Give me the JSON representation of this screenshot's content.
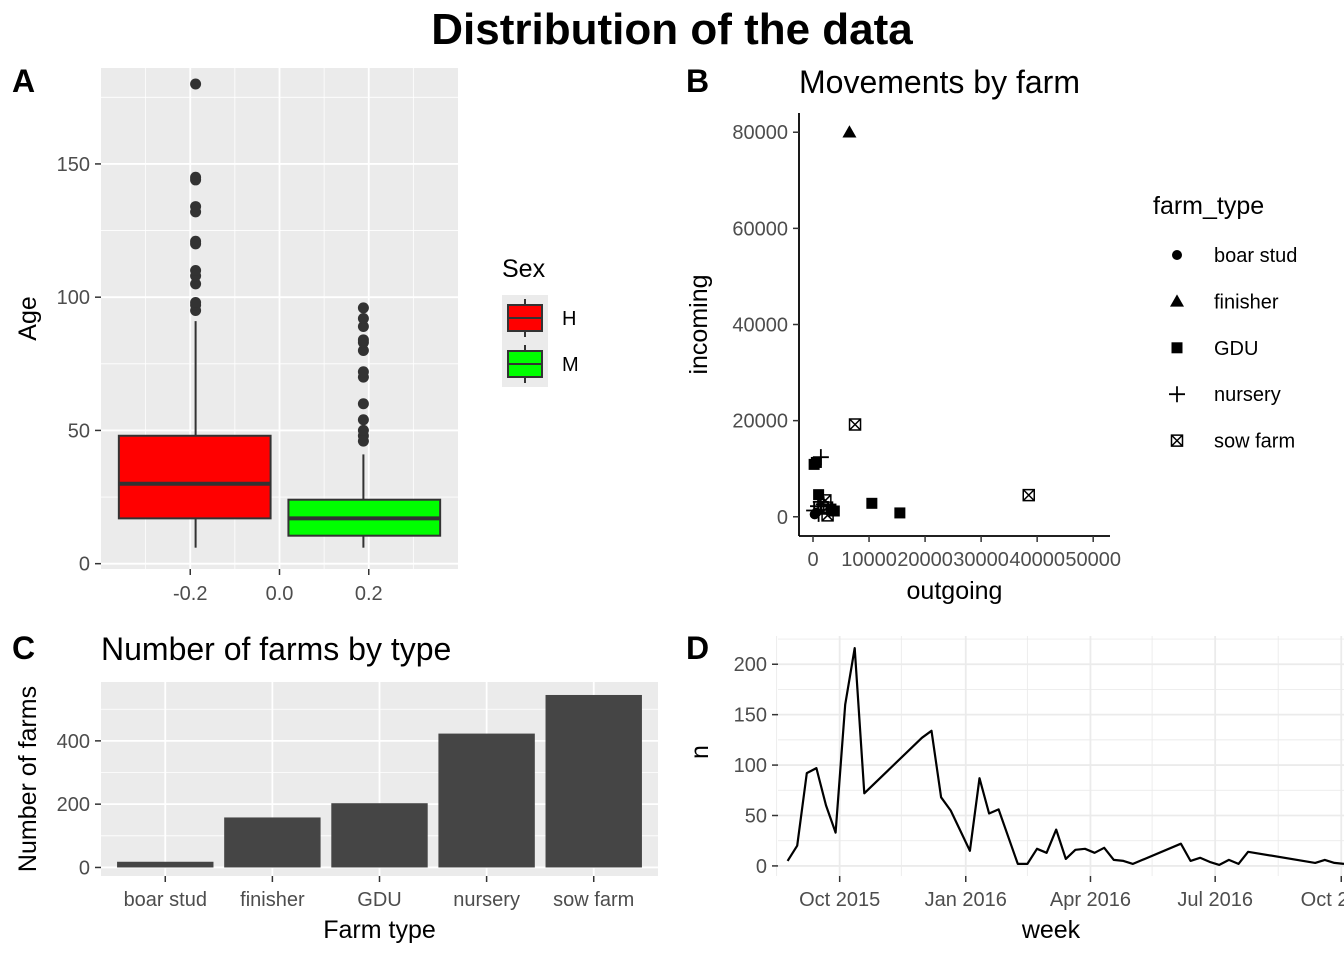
{
  "main_title": "Distribution of the data",
  "chart_data": [
    {
      "tag": "A",
      "type": "box",
      "title": "",
      "xlabel": "",
      "ylabel": "Age",
      "xlim": [
        -0.4,
        0.4
      ],
      "ylim": [
        -2,
        186
      ],
      "x_ticks": [
        -0.2,
        0.0,
        0.2
      ],
      "x_tick_labels": [
        "-0.2",
        "0.0",
        "0.2"
      ],
      "y_ticks": [
        0,
        50,
        100,
        150
      ],
      "y_tick_labels": [
        "0",
        "50",
        "100",
        "150"
      ],
      "grid": true,
      "legend_title": "Sex",
      "legend_position": "right",
      "series": [
        {
          "name": "H",
          "color": "#ff0000",
          "x_center": -0.188,
          "x_range": [
            -0.36,
            -0.02
          ],
          "whisker_low": 6,
          "q1": 17,
          "median": 30,
          "q3": 48,
          "whisker_high": 91,
          "outliers": [
            95,
            97,
            98,
            105,
            108,
            110,
            120,
            121,
            132,
            134,
            144,
            145,
            180
          ]
        },
        {
          "name": "M",
          "color": "#00ff00",
          "x_center": 0.188,
          "x_range": [
            0.02,
            0.36
          ],
          "whisker_low": 6,
          "q1": 10.5,
          "median": 17,
          "q3": 24,
          "whisker_high": 41,
          "outliers": [
            46,
            48,
            50,
            54,
            60,
            70,
            72,
            80,
            83,
            84,
            89,
            92,
            96
          ]
        }
      ]
    },
    {
      "tag": "B",
      "type": "scatter",
      "title": "Movements by farm",
      "xlabel": "outgoing",
      "ylabel": "incoming",
      "xlim": [
        -2500,
        53000
      ],
      "ylim": [
        -4000,
        84000
      ],
      "x_ticks": [
        0,
        10000,
        20000,
        30000,
        40000,
        50000
      ],
      "x_tick_labels": [
        "0",
        "10000",
        "20000",
        "30000",
        "40000",
        "50000"
      ],
      "y_ticks": [
        0,
        20000,
        40000,
        60000,
        80000
      ],
      "y_tick_labels": [
        "0",
        "20000",
        "40000",
        "60000",
        "80000"
      ],
      "grid": false,
      "legend_title": "farm_type",
      "legend_position": "right",
      "shapes": {
        "boar stud": "circle",
        "finisher": "triangle",
        "GDU": "square",
        "nursery": "plus",
        "sow farm": "boxx"
      },
      "series": [
        {
          "name": "boar stud",
          "points": [
            [
              300,
              500
            ],
            [
              600,
              900
            ]
          ]
        },
        {
          "name": "finisher",
          "points": [
            [
              6500,
              80000
            ]
          ]
        },
        {
          "name": "GDU",
          "points": [
            [
              200,
              10900
            ],
            [
              600,
              11300
            ],
            [
              1000,
              4600
            ],
            [
              3200,
              1600
            ],
            [
              3800,
              1200
            ],
            [
              10500,
              2800
            ],
            [
              15500,
              800
            ]
          ]
        },
        {
          "name": "nursery",
          "points": [
            [
              1400,
              12400
            ],
            [
              200,
              1300
            ],
            [
              900,
              2200
            ],
            [
              1400,
              3100
            ],
            [
              1000,
              600
            ],
            [
              1900,
              2600
            ]
          ]
        },
        {
          "name": "sow farm",
          "points": [
            [
              7500,
              19200
            ],
            [
              38500,
              4500
            ],
            [
              2200,
              3400
            ],
            [
              2500,
              1900
            ],
            [
              2600,
              300
            ]
          ]
        }
      ]
    },
    {
      "tag": "C",
      "type": "bar",
      "title": "Number of farms by type",
      "xlabel": "Farm type",
      "ylabel": "Number of farms",
      "categories": [
        "boar stud",
        "finisher",
        "GDU",
        "nursery",
        "sow farm"
      ],
      "values": [
        18,
        158,
        203,
        423,
        545
      ],
      "ylim": [
        -27,
        586
      ],
      "y_ticks": [
        0,
        200,
        400
      ],
      "y_tick_labels": [
        "0",
        "200",
        "400"
      ],
      "grid": true,
      "bar_color": "#454545"
    },
    {
      "tag": "D",
      "type": "line",
      "title": "",
      "xlabel": "week",
      "ylabel": "n",
      "xlim": [
        "2015-08-17",
        "2016-10-03"
      ],
      "ylim": [
        -10,
        228
      ],
      "x_ticks": [
        "2015-10-01",
        "2016-01-01",
        "2016-04-01",
        "2016-07-01",
        "2016-10-01"
      ],
      "x_tick_labels": [
        "Oct 2015",
        "Jan 2016",
        "Apr 2016",
        "Jul 2016",
        "Oct 2016"
      ],
      "y_ticks": [
        0,
        50,
        100,
        150,
        200
      ],
      "y_tick_labels": [
        "0",
        "50",
        "100",
        "150",
        "200"
      ],
      "grid": true,
      "line_color": "#000000",
      "x": [
        "2015-08-24",
        "2015-08-31",
        "2015-09-07",
        "2015-09-14",
        "2015-09-21",
        "2015-09-28",
        "2015-10-05",
        "2015-10-12",
        "2015-10-19",
        "2015-11-30",
        "2015-12-07",
        "2015-12-14",
        "2015-12-21",
        "2015-12-28",
        "2016-01-04",
        "2016-01-11",
        "2016-01-18",
        "2016-01-25",
        "2016-02-08",
        "2016-02-15",
        "2016-02-22",
        "2016-02-29",
        "2016-03-07",
        "2016-03-14",
        "2016-03-21",
        "2016-03-28",
        "2016-04-04",
        "2016-04-11",
        "2016-04-18",
        "2016-04-25",
        "2016-05-02",
        "2016-06-06",
        "2016-06-13",
        "2016-06-20",
        "2016-06-27",
        "2016-07-04",
        "2016-07-11",
        "2016-07-18",
        "2016-07-25",
        "2016-09-12",
        "2016-09-19",
        "2016-09-26",
        "2016-10-03"
      ],
      "values": [
        5,
        20,
        92,
        97,
        60,
        33,
        160,
        216,
        72,
        127,
        134,
        68,
        55,
        35,
        15,
        87,
        52,
        56,
        2,
        2,
        17,
        13,
        36,
        7,
        16,
        17,
        13,
        18,
        6,
        5,
        2,
        22,
        5,
        8,
        4,
        1,
        6,
        2,
        14,
        3,
        6,
        3,
        2
      ]
    }
  ],
  "legend_A": {
    "title": "Sex",
    "items": [
      {
        "label": "H",
        "color": "#ff0000"
      },
      {
        "label": "M",
        "color": "#00ff00"
      }
    ]
  },
  "legend_B": {
    "title": "farm_type",
    "items": [
      {
        "label": "boar stud",
        "shape": "circle"
      },
      {
        "label": "finisher",
        "shape": "triangle"
      },
      {
        "label": "GDU",
        "shape": "square"
      },
      {
        "label": "nursery",
        "shape": "plus"
      },
      {
        "label": "sow farm",
        "shape": "boxx"
      }
    ]
  }
}
